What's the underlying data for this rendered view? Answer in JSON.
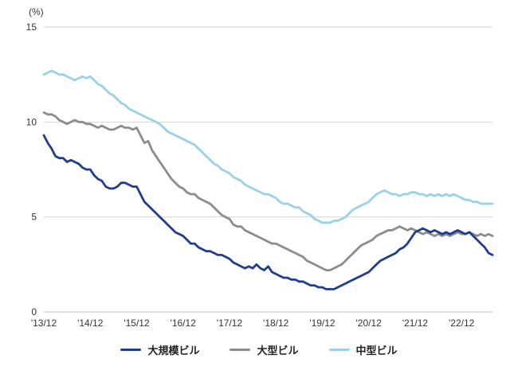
{
  "chart_data": {
    "type": "line",
    "title": "",
    "unit_label": "(%)",
    "ylabel": "(%)",
    "xlabel": "",
    "ylim": [
      0,
      15
    ],
    "y_ticks": [
      0,
      5,
      10,
      15
    ],
    "grid": "horizontal",
    "legend_position": "bottom",
    "x_start": "'13/12",
    "x_frequency": "monthly",
    "x_tick_every_n_points": 12,
    "x_tick_labels": [
      "'13/12",
      "'14/12",
      "'15/12",
      "'16/12",
      "'17/12",
      "'18/12",
      "'19/12",
      "'20/12",
      "'21/12",
      "'22/12"
    ],
    "series": [
      {
        "name": "大規模ビル",
        "color": "#1f3c8f",
        "values": [
          9.3,
          8.9,
          8.6,
          8.2,
          8.1,
          8.1,
          7.9,
          8.0,
          7.9,
          7.8,
          7.6,
          7.5,
          7.5,
          7.2,
          7.0,
          6.9,
          6.6,
          6.5,
          6.5,
          6.6,
          6.8,
          6.8,
          6.7,
          6.6,
          6.6,
          6.2,
          5.8,
          5.6,
          5.4,
          5.2,
          5.0,
          4.8,
          4.6,
          4.4,
          4.2,
          4.1,
          4.0,
          3.8,
          3.6,
          3.6,
          3.4,
          3.3,
          3.2,
          3.2,
          3.1,
          3.0,
          3.0,
          2.9,
          2.8,
          2.6,
          2.5,
          2.4,
          2.3,
          2.4,
          2.3,
          2.5,
          2.3,
          2.2,
          2.4,
          2.1,
          2.0,
          1.9,
          1.8,
          1.8,
          1.7,
          1.7,
          1.6,
          1.6,
          1.5,
          1.4,
          1.4,
          1.3,
          1.3,
          1.2,
          1.2,
          1.2,
          1.3,
          1.4,
          1.5,
          1.6,
          1.7,
          1.8,
          1.9,
          2.0,
          2.1,
          2.3,
          2.5,
          2.7,
          2.8,
          2.9,
          3.0,
          3.1,
          3.3,
          3.4,
          3.6,
          3.9,
          4.2,
          4.3,
          4.4,
          4.3,
          4.2,
          4.3,
          4.2,
          4.1,
          4.2,
          4.1,
          4.2,
          4.3,
          4.2,
          4.1,
          4.2,
          4.0,
          3.8,
          3.6,
          3.4,
          3.1,
          3.0
        ]
      },
      {
        "name": "大型ビル",
        "color": "#8c8c8c",
        "values": [
          10.5,
          10.4,
          10.4,
          10.3,
          10.1,
          10.0,
          9.9,
          10.0,
          10.1,
          10.0,
          10.0,
          9.9,
          9.9,
          9.8,
          9.7,
          9.8,
          9.7,
          9.6,
          9.6,
          9.7,
          9.8,
          9.7,
          9.7,
          9.6,
          9.7,
          9.3,
          8.9,
          9.0,
          8.5,
          8.2,
          7.9,
          7.6,
          7.3,
          7.0,
          6.8,
          6.6,
          6.5,
          6.3,
          6.2,
          6.2,
          6.0,
          5.9,
          5.8,
          5.7,
          5.5,
          5.3,
          5.1,
          5.0,
          4.9,
          4.6,
          4.5,
          4.5,
          4.3,
          4.2,
          4.1,
          4.0,
          3.9,
          3.8,
          3.7,
          3.6,
          3.6,
          3.5,
          3.4,
          3.3,
          3.2,
          3.1,
          3.0,
          2.9,
          2.7,
          2.6,
          2.5,
          2.4,
          2.3,
          2.2,
          2.2,
          2.3,
          2.4,
          2.5,
          2.7,
          2.9,
          3.1,
          3.3,
          3.5,
          3.6,
          3.7,
          3.8,
          4.0,
          4.1,
          4.2,
          4.3,
          4.3,
          4.4,
          4.5,
          4.4,
          4.3,
          4.4,
          4.3,
          4.2,
          4.1,
          4.2,
          4.1,
          4.0,
          4.1,
          4.0,
          4.1,
          4.0,
          4.1,
          4.2,
          4.1,
          4.1,
          4.2,
          4.1,
          4.0,
          4.1,
          4.0,
          4.1,
          4.0
        ]
      },
      {
        "name": "中型ビル",
        "color": "#99d2e8",
        "values": [
          12.5,
          12.6,
          12.7,
          12.6,
          12.5,
          12.5,
          12.4,
          12.3,
          12.2,
          12.3,
          12.4,
          12.3,
          12.4,
          12.2,
          12.0,
          11.9,
          11.7,
          11.5,
          11.4,
          11.2,
          11.0,
          10.9,
          10.7,
          10.6,
          10.5,
          10.4,
          10.3,
          10.2,
          10.1,
          10.0,
          9.9,
          9.7,
          9.5,
          9.4,
          9.3,
          9.2,
          9.1,
          9.0,
          8.9,
          8.8,
          8.6,
          8.4,
          8.2,
          8.0,
          7.8,
          7.7,
          7.5,
          7.4,
          7.3,
          7.1,
          7.0,
          6.9,
          6.7,
          6.6,
          6.5,
          6.4,
          6.3,
          6.2,
          6.2,
          6.1,
          6.0,
          5.8,
          5.7,
          5.7,
          5.6,
          5.5,
          5.5,
          5.3,
          5.2,
          5.1,
          4.9,
          4.8,
          4.7,
          4.7,
          4.7,
          4.8,
          4.8,
          4.9,
          5.0,
          5.2,
          5.4,
          5.5,
          5.6,
          5.7,
          5.8,
          6.0,
          6.2,
          6.3,
          6.4,
          6.3,
          6.2,
          6.2,
          6.1,
          6.2,
          6.2,
          6.3,
          6.3,
          6.2,
          6.2,
          6.1,
          6.2,
          6.1,
          6.2,
          6.1,
          6.2,
          6.1,
          6.2,
          6.1,
          6.0,
          5.9,
          5.9,
          5.8,
          5.8,
          5.7,
          5.7,
          5.7,
          5.7
        ]
      }
    ]
  },
  "colors": {
    "gridline": "#d6d6d6",
    "axis_line": "#c0c0c0",
    "tick_label": "#333333"
  }
}
